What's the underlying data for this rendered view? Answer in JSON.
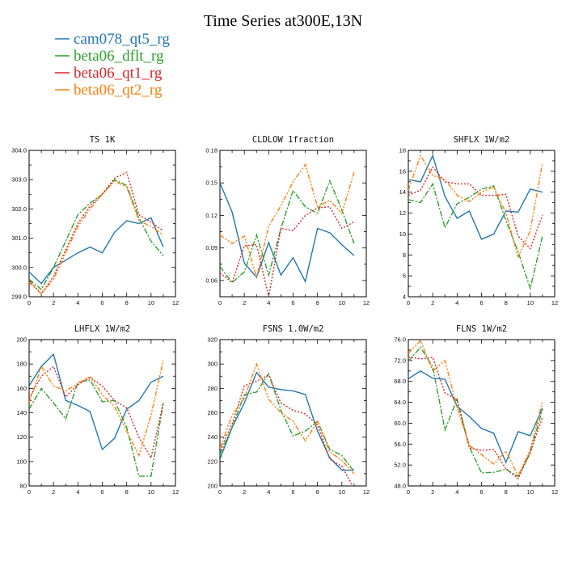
{
  "figure": {
    "title": "Time Series at300E,13N",
    "legend": [
      {
        "label": "cam078_qt5_rg",
        "color": "#1f77b4"
      },
      {
        "label": "beta06_dflt_rg",
        "color": "#2ca02c"
      },
      {
        "label": "beta06_qt1_rg",
        "color": "#d62728"
      },
      {
        "label": "beta06_qt2_rg",
        "color": "#ff7f0e"
      }
    ]
  },
  "chart_data": [
    {
      "type": "line",
      "title": "TS   1K",
      "x": [
        0,
        1,
        2,
        3,
        4,
        5,
        6,
        7,
        8,
        9,
        10,
        11
      ],
      "xlim": [
        0,
        12
      ],
      "xticks": [
        0,
        2,
        4,
        6,
        8,
        10,
        12
      ],
      "ylim": [
        299.0,
        304.0
      ],
      "yticks": [
        299.0,
        300.0,
        301.0,
        302.0,
        303.0,
        304.0
      ],
      "ytick_labels": [
        "299.0",
        "300.0",
        "301.0",
        "302.0",
        "303.0",
        "304.0"
      ],
      "series": [
        {
          "name": "cam078_qt5_rg",
          "values": [
            299.85,
            299.45,
            300.0,
            300.25,
            300.5,
            300.7,
            300.5,
            301.2,
            301.6,
            301.5,
            301.7,
            300.7
          ]
        },
        {
          "name": "beta06_dflt_rg",
          "values": [
            299.6,
            299.25,
            300.0,
            300.9,
            301.8,
            302.2,
            302.5,
            303.0,
            302.8,
            301.7,
            300.9,
            300.4
          ]
        },
        {
          "name": "beta06_qt1_rg",
          "values": [
            299.55,
            299.1,
            299.7,
            300.6,
            301.5,
            302.1,
            302.5,
            303.05,
            303.25,
            301.8,
            301.55,
            301.25
          ]
        },
        {
          "name": "beta06_qt2_rg",
          "values": [
            299.5,
            299.1,
            299.6,
            300.5,
            301.4,
            302.0,
            302.5,
            302.95,
            302.75,
            301.6,
            301.4,
            301.1
          ]
        }
      ]
    },
    {
      "type": "line",
      "title": "CLDLOW   1fraction",
      "x": [
        0,
        1,
        2,
        3,
        4,
        5,
        6,
        7,
        8,
        9,
        10,
        11
      ],
      "xlim": [
        0,
        12
      ],
      "xticks": [
        0,
        2,
        4,
        6,
        8,
        10,
        12
      ],
      "ylim": [
        0.045,
        0.18
      ],
      "yticks": [
        0.06,
        0.09,
        0.12,
        0.15,
        0.18
      ],
      "ytick_labels": [
        "0.06",
        "0.09",
        "0.12",
        "0.15",
        "0.18"
      ],
      "series": [
        {
          "name": "cam078_qt5_rg",
          "values": [
            0.15,
            0.123,
            0.076,
            0.063,
            0.095,
            0.065,
            0.081,
            0.059,
            0.108,
            0.104,
            0.093,
            0.083
          ]
        },
        {
          "name": "beta06_dflt_rg",
          "values": [
            0.073,
            0.058,
            0.068,
            0.102,
            0.065,
            0.108,
            0.143,
            0.128,
            0.122,
            0.152,
            0.125,
            0.094
          ]
        },
        {
          "name": "beta06_qt1_rg",
          "values": [
            0.067,
            0.058,
            0.092,
            0.093,
            0.045,
            0.108,
            0.106,
            0.12,
            0.127,
            0.128,
            0.108,
            0.114
          ]
        },
        {
          "name": "beta06_qt2_rg",
          "values": [
            0.102,
            0.094,
            0.101,
            0.063,
            0.11,
            0.129,
            0.151,
            0.167,
            0.128,
            0.134,
            0.122,
            0.16
          ]
        }
      ]
    },
    {
      "type": "line",
      "title": "SHFLX   1W/m2",
      "x": [
        0,
        1,
        2,
        3,
        4,
        5,
        6,
        7,
        8,
        9,
        10,
        11
      ],
      "xlim": [
        0,
        12
      ],
      "xticks": [
        0,
        2,
        4,
        6,
        8,
        10,
        12
      ],
      "ylim": [
        4,
        18
      ],
      "yticks": [
        4,
        6,
        8,
        10,
        12,
        14,
        16,
        18
      ],
      "ytick_labels": [
        "4",
        "6",
        "8",
        "10",
        "12",
        "14",
        "16",
        "18"
      ],
      "series": [
        {
          "name": "cam078_qt5_rg",
          "values": [
            15.2,
            15.0,
            17.5,
            13.6,
            11.5,
            12.2,
            9.5,
            10.0,
            12.2,
            12.1,
            14.3,
            14.0
          ]
        },
        {
          "name": "beta06_dflt_rg",
          "values": [
            13.3,
            13.0,
            14.8,
            10.6,
            12.9,
            13.5,
            14.3,
            14.6,
            11.3,
            8.3,
            4.8,
            9.8
          ]
        },
        {
          "name": "beta06_qt1_rg",
          "values": [
            13.7,
            14.2,
            16.4,
            15.0,
            14.8,
            14.8,
            13.7,
            13.7,
            13.8,
            9.8,
            8.6,
            11.8
          ]
        },
        {
          "name": "beta06_qt2_rg",
          "values": [
            14.2,
            17.5,
            15.6,
            15.2,
            13.7,
            13.1,
            14.0,
            14.5,
            12.0,
            7.8,
            10.3,
            16.8
          ]
        }
      ]
    },
    {
      "type": "line",
      "title": "LHFLX   1W/m2",
      "x": [
        0,
        1,
        2,
        3,
        4,
        5,
        6,
        7,
        8,
        9,
        10,
        11
      ],
      "xlim": [
        0,
        12
      ],
      "xticks": [
        0,
        2,
        4,
        6,
        8,
        10,
        12
      ],
      "ylim": [
        80,
        200
      ],
      "yticks": [
        80,
        100,
        120,
        140,
        160,
        180,
        200
      ],
      "ytick_labels": [
        "80",
        "100",
        "120",
        "140",
        "160",
        "180",
        "200"
      ],
      "series": [
        {
          "name": "cam078_qt5_rg",
          "values": [
            162,
            178,
            188,
            150,
            146,
            141,
            110,
            119,
            143,
            150,
            165,
            170
          ]
        },
        {
          "name": "beta06_dflt_rg",
          "values": [
            143,
            160,
            148,
            135,
            165,
            167,
            149,
            150,
            128,
            88,
            88,
            148
          ]
        },
        {
          "name": "beta06_qt1_rg",
          "values": [
            152,
            170,
            178,
            153,
            163,
            169,
            162,
            150,
            144,
            120,
            103,
            148
          ]
        },
        {
          "name": "beta06_qt2_rg",
          "values": [
            148,
            178,
            162,
            158,
            164,
            170,
            155,
            145,
            125,
            105,
            138,
            183
          ]
        }
      ]
    },
    {
      "type": "line",
      "title": "FSNS   1.0W/m2",
      "x": [
        0,
        1,
        2,
        3,
        4,
        5,
        6,
        7,
        8,
        9,
        10,
        11
      ],
      "xlim": [
        0,
        12
      ],
      "xticks": [
        0,
        2,
        4,
        6,
        8,
        10,
        12
      ],
      "ylim": [
        200,
        320
      ],
      "yticks": [
        200,
        220,
        240,
        260,
        280,
        300,
        320
      ],
      "ytick_labels": [
        "200",
        "220",
        "240",
        "260",
        "280",
        "300",
        "320"
      ],
      "series": [
        {
          "name": "cam078_qt5_rg",
          "values": [
            222,
            248,
            268,
            293,
            281,
            279,
            278,
            275,
            245,
            223,
            213,
            213
          ]
        },
        {
          "name": "beta06_dflt_rg",
          "values": [
            226,
            248,
            275,
            277,
            292,
            262,
            241,
            245,
            253,
            230,
            225,
            212
          ]
        },
        {
          "name": "beta06_qt1_rg",
          "values": [
            229,
            251,
            282,
            286,
            291,
            268,
            262,
            259,
            250,
            222,
            216,
            198
          ]
        },
        {
          "name": "beta06_qt2_rg",
          "values": [
            231,
            258,
            272,
            300,
            271,
            260,
            253,
            237,
            253,
            228,
            221,
            210
          ]
        }
      ]
    },
    {
      "type": "line",
      "title": "FLNS   1W/m2",
      "x": [
        0,
        1,
        2,
        3,
        4,
        5,
        6,
        7,
        8,
        9,
        10,
        11
      ],
      "xlim": [
        0,
        12
      ],
      "xticks": [
        0,
        2,
        4,
        6,
        8,
        10,
        12
      ],
      "ylim": [
        48.0,
        76.0
      ],
      "yticks": [
        48.0,
        52.0,
        56.0,
        60.0,
        64.0,
        68.0,
        72.0,
        76.0
      ],
      "ytick_labels": [
        "48.0",
        "52.0",
        "56.0",
        "60.0",
        "64.0",
        "68.0",
        "72.0",
        "76.0"
      ],
      "series": [
        {
          "name": "cam078_qt5_rg",
          "values": [
            68.5,
            70.0,
            68.6,
            68.4,
            63.2,
            61.3,
            59.0,
            58.1,
            52.5,
            58.4,
            57.6,
            62.9
          ]
        },
        {
          "name": "beta06_dflt_rg",
          "values": [
            71.9,
            74.5,
            70.8,
            58.7,
            64.6,
            55.5,
            50.5,
            50.6,
            51.2,
            49.8,
            54.3,
            62.7
          ]
        },
        {
          "name": "beta06_qt1_rg",
          "values": [
            72.7,
            72.3,
            72.6,
            65.8,
            64.4,
            55.3,
            54.8,
            55.0,
            51.3,
            49.4,
            54.5,
            61.1
          ]
        },
        {
          "name": "beta06_qt2_rg",
          "values": [
            73.4,
            75.8,
            70.0,
            72.0,
            63.0,
            55.8,
            54.0,
            52.2,
            54.7,
            49.9,
            54.9,
            64.2
          ]
        }
      ]
    }
  ]
}
